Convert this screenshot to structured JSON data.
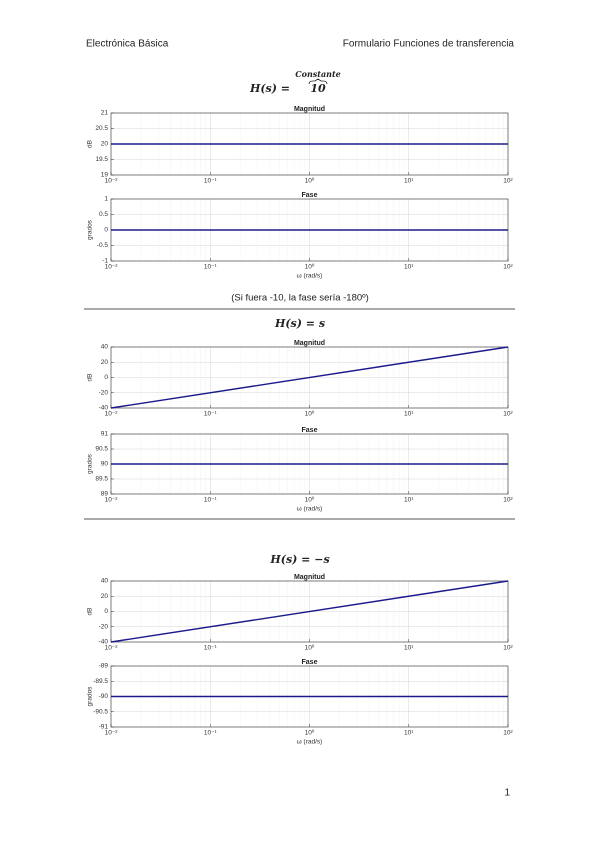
{
  "header": {
    "left": "Electrónica Básica",
    "right": "Formulario Funciones de transferencia"
  },
  "sections": [
    {
      "formula": "H(s) =",
      "constant": "10",
      "annotation": "Constante",
      "note": "(Si fuera -10, la fase sería -180º)",
      "plots": [
        {
          "type": "line",
          "title": "Magnitud",
          "ylabel": "dB",
          "x": [
            0.01,
            100
          ],
          "values": [
            20,
            20
          ],
          "color": "#1a1a8c",
          "xlim": [
            0.01,
            100
          ],
          "xticks": [
            {
              "value": 0.01,
              "label": "10⁻²"
            },
            {
              "value": 0.1,
              "label": "10⁻¹"
            },
            {
              "value": 1,
              "label": "10⁰"
            },
            {
              "value": 10,
              "label": "10¹"
            },
            {
              "value": 100,
              "label": "10²"
            }
          ],
          "ylim": [
            19,
            21
          ],
          "yticks": [
            21,
            20.5,
            20,
            19.5,
            19
          ],
          "log_x": true,
          "grid": true,
          "minor_grid": true
        },
        {
          "type": "line",
          "title": "Fase",
          "ylabel": "grados",
          "xlabel": "ω (rad/s)",
          "x": [
            0.01,
            100
          ],
          "values": [
            0,
            0
          ],
          "color": "#1a1a8c",
          "xlim": [
            0.01,
            100
          ],
          "xticks": [
            {
              "value": 0.01,
              "label": "10⁻²"
            },
            {
              "value": 0.1,
              "label": "10⁻¹"
            },
            {
              "value": 1,
              "label": "10⁰"
            },
            {
              "value": 10,
              "label": "10¹"
            },
            {
              "value": 100,
              "label": "10²"
            }
          ],
          "ylim": [
            -1,
            1
          ],
          "yticks": [
            1,
            0.5,
            0,
            -0.5,
            -1
          ],
          "log_x": true,
          "grid": true,
          "minor_grid": true
        }
      ]
    },
    {
      "formula": "H(s) = s",
      "plots": [
        {
          "type": "line",
          "title": "Magnitud",
          "ylabel": "dB",
          "x": [
            0.01,
            100
          ],
          "values": [
            -40,
            40
          ],
          "color": "#1a1a8c",
          "xlim": [
            0.01,
            100
          ],
          "xticks": [
            {
              "value": 0.01,
              "label": "10⁻²"
            },
            {
              "value": 0.1,
              "label": "10⁻¹"
            },
            {
              "value": 1,
              "label": "10⁰"
            },
            {
              "value": 10,
              "label": "10¹"
            },
            {
              "value": 100,
              "label": "10²"
            }
          ],
          "ylim": [
            -40,
            40
          ],
          "yticks": [
            40,
            20,
            0,
            -20,
            -40
          ],
          "log_x": true,
          "grid": true,
          "minor_grid": true
        },
        {
          "type": "line",
          "title": "Fase",
          "ylabel": "grados",
          "xlabel": "ω (rad/s)",
          "x": [
            0.01,
            100
          ],
          "values": [
            90,
            90
          ],
          "color": "#1a1a8c",
          "xlim": [
            0.01,
            100
          ],
          "xticks": [
            {
              "value": 0.01,
              "label": "10⁻²"
            },
            {
              "value": 0.1,
              "label": "10⁻¹"
            },
            {
              "value": 1,
              "label": "10⁰"
            },
            {
              "value": 10,
              "label": "10¹"
            },
            {
              "value": 100,
              "label": "10²"
            }
          ],
          "ylim": [
            89,
            91
          ],
          "yticks": [
            91,
            90.5,
            90,
            89.5,
            89
          ],
          "log_x": true,
          "grid": true,
          "minor_grid": true
        }
      ]
    },
    {
      "formula": "H(s) = −s",
      "plots": [
        {
          "type": "line",
          "title": "Magnitud",
          "ylabel": "dB",
          "x": [
            0.01,
            100
          ],
          "values": [
            -40,
            40
          ],
          "color": "#1a1a8c",
          "xlim": [
            0.01,
            100
          ],
          "xticks": [
            {
              "value": 0.01,
              "label": "10⁻²"
            },
            {
              "value": 0.1,
              "label": "10⁻¹"
            },
            {
              "value": 1,
              "label": "10⁰"
            },
            {
              "value": 10,
              "label": "10¹"
            },
            {
              "value": 100,
              "label": "10²"
            }
          ],
          "ylim": [
            -40,
            40
          ],
          "yticks": [
            40,
            20,
            0,
            -20,
            -40
          ],
          "log_x": true,
          "grid": true,
          "minor_grid": true
        },
        {
          "type": "line",
          "title": "Fase",
          "ylabel": "grados",
          "xlabel": "ω (rad/s)",
          "x": [
            0.01,
            100
          ],
          "values": [
            -90,
            -90
          ],
          "color": "#1a1a8c",
          "xlim": [
            0.01,
            100
          ],
          "xticks": [
            {
              "value": 0.01,
              "label": "10⁻²"
            },
            {
              "value": 0.1,
              "label": "10⁻¹"
            },
            {
              "value": 1,
              "label": "10⁰"
            },
            {
              "value": 10,
              "label": "10¹"
            },
            {
              "value": 100,
              "label": "10²"
            }
          ],
          "ylim": [
            -91,
            -89
          ],
          "yticks": [
            -89,
            -89.5,
            -90,
            -90.5,
            -91
          ],
          "log_x": true,
          "grid": true,
          "minor_grid": true
        }
      ]
    }
  ],
  "footer": {
    "page": "1"
  }
}
